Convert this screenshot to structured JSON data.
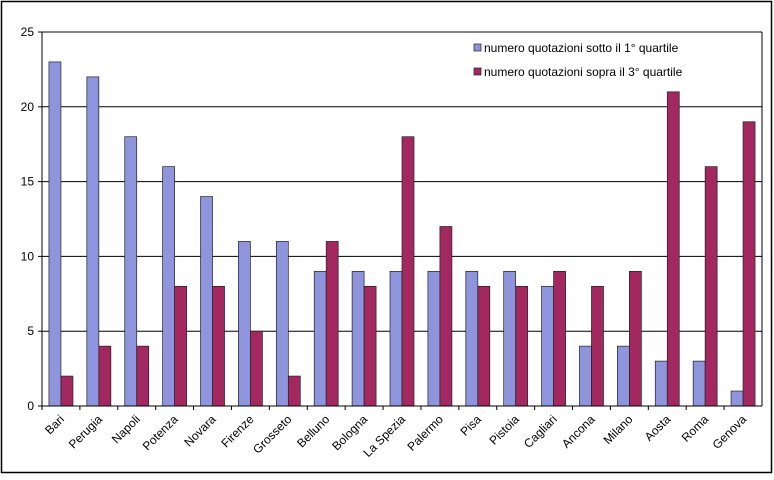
{
  "chart_data": {
    "type": "bar",
    "categories": [
      "Bari",
      "Perugia",
      "Napoli",
      "Potenza",
      "Novara",
      "Firenze",
      "Grosseto",
      "Belluno",
      "Bologna",
      "La Spezia",
      "Palermo",
      "Pisa",
      "Pistoia",
      "Cagliari",
      "Ancona",
      "Milano",
      "Aosta",
      "Roma",
      "Genova"
    ],
    "series": [
      {
        "name": "numero quotazioni sotto il 1° quartile",
        "color": "#8e95dc",
        "values": [
          23,
          22,
          18,
          16,
          14,
          11,
          11,
          9,
          9,
          9,
          9,
          9,
          9,
          8,
          4,
          4,
          3,
          3,
          1
        ]
      },
      {
        "name": "numero quotazioni sopra il 3° quartile",
        "color": "#a32860",
        "values": [
          2,
          4,
          4,
          8,
          8,
          5,
          2,
          11,
          8,
          18,
          12,
          8,
          8,
          9,
          8,
          9,
          21,
          16,
          19
        ]
      }
    ],
    "ylim": [
      0,
      25
    ],
    "yticks": [
      0,
      5,
      10,
      15,
      20,
      25
    ],
    "grid": true,
    "legend": "top-right"
  }
}
